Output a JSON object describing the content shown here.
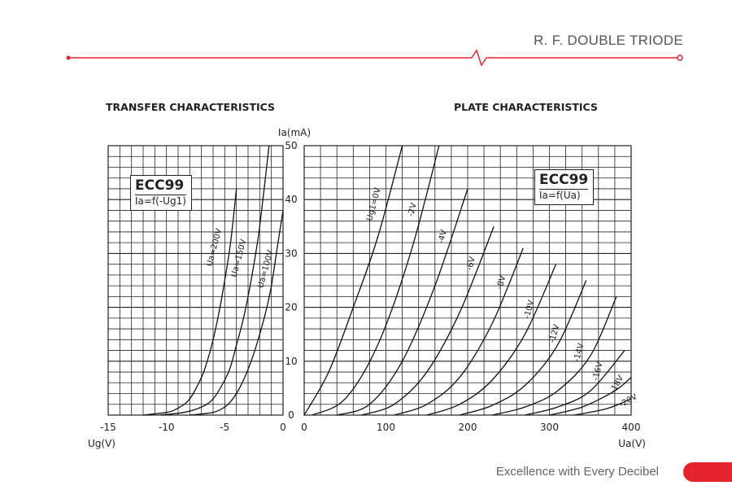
{
  "header": {
    "title": "R. F. DOUBLE TRIODE"
  },
  "footer": {
    "tagline": "Excellence with Every Decibel"
  },
  "colors": {
    "accent": "#e3242b",
    "grid": "#222222",
    "curve": "#111111"
  },
  "chart_data": [
    {
      "type": "line",
      "title": "TRANSFER CHARACTERISTICS",
      "xlabel": "Ug(V)",
      "ylabel": "Ia(mA)",
      "xlim": [
        -15,
        0
      ],
      "ylim": [
        0,
        50
      ],
      "grid": true,
      "x_ticks": [
        "-15",
        "-10",
        "-5",
        "0"
      ],
      "y_ticks": [
        "0",
        "10",
        "20",
        "30",
        "40",
        "50"
      ],
      "legend": {
        "name": "ECC99",
        "formula": "Ia=f(-Ug1)"
      },
      "series": [
        {
          "name": "Ua=200V",
          "label_rot": -75,
          "label_anchor": [
            -5.7,
            31
          ],
          "x": [
            -12,
            -10,
            -9,
            -8,
            -7,
            -6.5,
            -6,
            -5.5,
            -5,
            -4.5,
            -4
          ],
          "y": [
            0,
            0.5,
            1.3,
            3,
            7,
            10,
            14,
            19,
            25,
            32,
            42
          ]
        },
        {
          "name": "Ua=150V",
          "label_rot": -75,
          "label_anchor": [
            -3.6,
            29
          ],
          "x": [
            -10.5,
            -8.5,
            -7,
            -6,
            -5,
            -4.5,
            -4,
            -3.5,
            -3,
            -2.5,
            -2,
            -1.2
          ],
          "y": [
            0,
            0.5,
            1.5,
            3,
            6.5,
            9,
            13,
            17,
            22,
            28,
            35,
            50
          ]
        },
        {
          "name": "Ua=100V",
          "label_rot": -75,
          "label_anchor": [
            -1.3,
            27
          ],
          "x": [
            -8,
            -6,
            -5,
            -4.5,
            -4,
            -3.5,
            -3,
            -2.5,
            -2,
            -1.5,
            -1,
            -0.5,
            0
          ],
          "y": [
            0,
            0.5,
            1.5,
            2.5,
            4,
            6,
            8.5,
            11.5,
            15,
            19,
            24,
            31,
            38
          ]
        }
      ]
    },
    {
      "type": "line",
      "title": "PLATE CHARACTERISTICS",
      "xlabel": "Ua(V)",
      "ylabel": "Ia(mA)",
      "xlim": [
        0,
        400
      ],
      "ylim": [
        0,
        50
      ],
      "grid": true,
      "x_ticks": [
        "0",
        "100",
        "200",
        "300",
        "400"
      ],
      "y_ticks": [
        "0",
        "10",
        "20",
        "30",
        "40",
        "50"
      ],
      "legend": {
        "name": "ECC99",
        "formula": "Ia=f(Ua)"
      },
      "series": [
        {
          "name": "Ug1=0V",
          "label_rot": -75,
          "label_anchor": [
            88,
            39
          ],
          "x": [
            0,
            30,
            60,
            90,
            120
          ],
          "y": [
            0,
            8,
            20,
            33,
            50
          ]
        },
        {
          "name": "-2V",
          "label_rot": -75,
          "label_anchor": [
            135,
            38
          ],
          "x": [
            10,
            50,
            90,
            130,
            165
          ],
          "y": [
            0,
            3,
            13,
            30,
            50
          ]
        },
        {
          "name": "-4V",
          "label_rot": -75,
          "label_anchor": [
            172,
            33
          ],
          "x": [
            40,
            80,
            120,
            160,
            200
          ],
          "y": [
            0,
            2,
            10,
            24,
            42
          ]
        },
        {
          "name": "-6V",
          "label_rot": -75,
          "label_anchor": [
            207,
            28
          ],
          "x": [
            70,
            110,
            150,
            190,
            232
          ],
          "y": [
            0,
            2,
            8,
            19,
            35
          ]
        },
        {
          "name": "-8V",
          "label_rot": -75,
          "label_anchor": [
            244,
            24.5
          ],
          "x": [
            110,
            150,
            190,
            230,
            268
          ],
          "y": [
            0,
            2,
            7,
            17,
            31
          ]
        },
        {
          "name": "-10V",
          "label_rot": -75,
          "label_anchor": [
            278,
            19.5
          ],
          "x": [
            150,
            190,
            230,
            270,
            308
          ],
          "y": [
            0,
            2,
            6.5,
            15,
            28
          ]
        },
        {
          "name": "-12V",
          "label_rot": -75,
          "label_anchor": [
            309,
            15
          ],
          "x": [
            190,
            230,
            270,
            310,
            345
          ],
          "y": [
            0,
            1.8,
            5.5,
            13,
            25
          ]
        },
        {
          "name": "-14V",
          "label_rot": -75,
          "label_anchor": [
            339,
            11.5
          ],
          "x": [
            230,
            270,
            310,
            350,
            382
          ],
          "y": [
            0,
            1.5,
            4.5,
            11,
            22
          ]
        },
        {
          "name": "-16V",
          "label_rot": -75,
          "label_anchor": [
            362,
            8
          ],
          "x": [
            270,
            310,
            350,
            392
          ],
          "y": [
            0,
            1.5,
            4.5,
            12
          ]
        },
        {
          "name": "-18V",
          "label_rot": -60,
          "label_anchor": [
            385,
            5.5
          ],
          "x": [
            300,
            340,
            380,
            400
          ],
          "y": [
            0,
            1.5,
            4.5,
            7
          ]
        },
        {
          "name": "-20V",
          "label_rot": -30,
          "label_anchor": [
            398,
            2.3
          ],
          "x": [
            330,
            370,
            400
          ],
          "y": [
            0,
            1.2,
            3
          ]
        }
      ]
    }
  ]
}
